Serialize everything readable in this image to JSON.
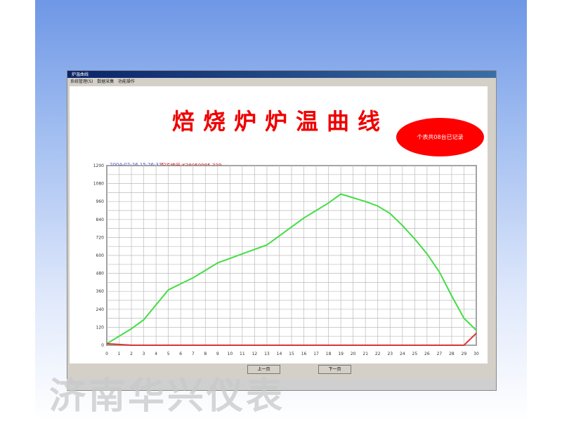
{
  "window": {
    "title": "炉温曲线",
    "menu": [
      "系统管理(S)",
      "数据采集",
      "功能操作"
    ]
  },
  "header": {
    "title": "焙烧炉炉温曲线",
    "date": "2004-07-26 15:26:31",
    "recipe": "配方编号:K38050085-339",
    "badge": "个表共08台已记录"
  },
  "buttons": {
    "prev": "上一页",
    "next": "下一页"
  },
  "watermark": "济南华兴仪表",
  "chart_data": {
    "type": "line",
    "grid": true,
    "xlim": [
      0,
      30
    ],
    "ylim": [
      0,
      1200
    ],
    "x": [
      0,
      1,
      2,
      3,
      4,
      5,
      6,
      7,
      8,
      9,
      10,
      11,
      12,
      13,
      14,
      15,
      16,
      17,
      18,
      19,
      20,
      21,
      22,
      23,
      24,
      25,
      26,
      27,
      28,
      29,
      30
    ],
    "yticks": [
      0,
      120,
      240,
      360,
      480,
      600,
      720,
      840,
      960,
      1080,
      1200
    ],
    "series": [
      {
        "color": "#44dd44",
        "values": [
          10,
          60,
          110,
          170,
          270,
          370,
          410,
          450,
          500,
          550,
          580,
          610,
          640,
          670,
          730,
          790,
          850,
          900,
          950,
          1010,
          985,
          960,
          930,
          880,
          800,
          710,
          610,
          490,
          330,
          180,
          100
        ]
      },
      {
        "color": "#dd3333",
        "values": [
          10,
          5,
          0,
          0,
          0,
          0,
          0,
          0,
          0,
          0,
          0,
          0,
          0,
          0,
          0,
          0,
          0,
          0,
          0,
          0,
          0,
          0,
          0,
          0,
          0,
          0,
          0,
          0,
          0,
          0,
          80
        ]
      }
    ]
  }
}
